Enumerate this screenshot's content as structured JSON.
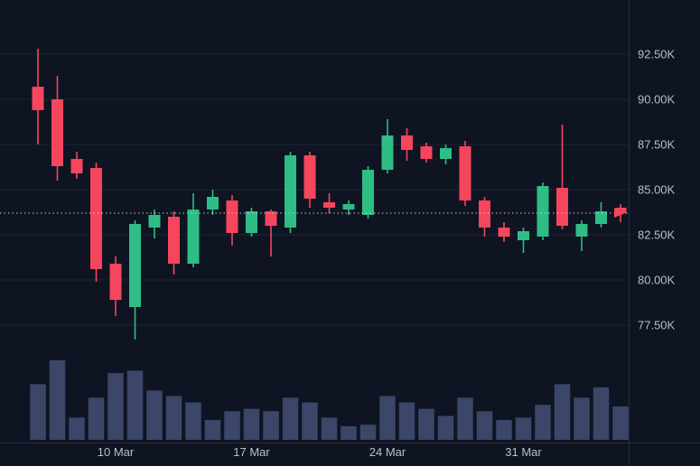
{
  "chart_data": {
    "type": "candlestick",
    "title": "",
    "unit": "K",
    "ylim": [
      76,
      94.5
    ],
    "grid": "horizontal",
    "legend_position": "none",
    "y_axis": {
      "side": "right",
      "ticks": [
        {
          "value": 92.5,
          "label": "92.50K"
        },
        {
          "value": 90.0,
          "label": "90.00K"
        },
        {
          "value": 87.5,
          "label": "87.50K"
        },
        {
          "value": 85.0,
          "label": "85.00K"
        },
        {
          "value": 82.5,
          "label": "82.50K"
        },
        {
          "value": 80.0,
          "label": "80.00K"
        },
        {
          "value": 77.5,
          "label": "77.50K"
        }
      ]
    },
    "x_axis": {
      "ticks": [
        {
          "index": 4,
          "label": "10 Mar"
        },
        {
          "index": 11,
          "label": "17 Mar"
        },
        {
          "index": 18,
          "label": "24 Mar"
        },
        {
          "index": 25,
          "label": "31 Mar"
        }
      ]
    },
    "current_price": {
      "value": 83.7
    },
    "candles": [
      {
        "o": 90.7,
        "h": 92.8,
        "l": 87.5,
        "c": 89.4,
        "v": 0.7
      },
      {
        "o": 90.0,
        "h": 91.3,
        "l": 85.5,
        "c": 86.3,
        "v": 1.0
      },
      {
        "o": 86.7,
        "h": 87.1,
        "l": 85.6,
        "c": 85.9,
        "v": 0.28
      },
      {
        "o": 86.2,
        "h": 86.5,
        "l": 79.9,
        "c": 80.6,
        "v": 0.53
      },
      {
        "o": 80.9,
        "h": 81.3,
        "l": 78.0,
        "c": 78.9,
        "v": 0.84
      },
      {
        "o": 78.5,
        "h": 83.3,
        "l": 76.7,
        "c": 83.1,
        "v": 0.87
      },
      {
        "o": 82.9,
        "h": 83.9,
        "l": 82.3,
        "c": 83.6,
        "v": 0.62
      },
      {
        "o": 83.5,
        "h": 83.8,
        "l": 80.3,
        "c": 80.9,
        "v": 0.55
      },
      {
        "o": 80.9,
        "h": 84.8,
        "l": 80.7,
        "c": 83.9,
        "v": 0.47
      },
      {
        "o": 83.9,
        "h": 85.0,
        "l": 83.6,
        "c": 84.6,
        "v": 0.25
      },
      {
        "o": 84.4,
        "h": 84.7,
        "l": 81.9,
        "c": 82.6,
        "v": 0.36
      },
      {
        "o": 82.6,
        "h": 84.0,
        "l": 82.4,
        "c": 83.8,
        "v": 0.39
      },
      {
        "o": 83.8,
        "h": 83.9,
        "l": 81.3,
        "c": 83.0,
        "v": 0.36
      },
      {
        "o": 82.9,
        "h": 87.1,
        "l": 82.6,
        "c": 86.9,
        "v": 0.53
      },
      {
        "o": 86.9,
        "h": 87.1,
        "l": 84.0,
        "c": 84.5,
        "v": 0.47
      },
      {
        "o": 84.3,
        "h": 84.8,
        "l": 83.7,
        "c": 84.0,
        "v": 0.28
      },
      {
        "o": 83.9,
        "h": 84.4,
        "l": 83.6,
        "c": 84.2,
        "v": 0.17
      },
      {
        "o": 83.6,
        "h": 86.3,
        "l": 83.4,
        "c": 86.1,
        "v": 0.19
      },
      {
        "o": 86.1,
        "h": 88.9,
        "l": 85.9,
        "c": 88.0,
        "v": 0.55
      },
      {
        "o": 88.0,
        "h": 88.4,
        "l": 86.6,
        "c": 87.2,
        "v": 0.47
      },
      {
        "o": 87.4,
        "h": 87.6,
        "l": 86.5,
        "c": 86.7,
        "v": 0.39
      },
      {
        "o": 86.7,
        "h": 87.5,
        "l": 86.4,
        "c": 87.3,
        "v": 0.3
      },
      {
        "o": 87.4,
        "h": 87.7,
        "l": 84.1,
        "c": 84.4,
        "v": 0.53
      },
      {
        "o": 84.4,
        "h": 84.6,
        "l": 82.4,
        "c": 82.9,
        "v": 0.36
      },
      {
        "o": 82.9,
        "h": 83.2,
        "l": 82.1,
        "c": 82.4,
        "v": 0.25
      },
      {
        "o": 82.2,
        "h": 82.9,
        "l": 81.5,
        "c": 82.7,
        "v": 0.28
      },
      {
        "o": 82.4,
        "h": 85.4,
        "l": 82.2,
        "c": 85.2,
        "v": 0.44
      },
      {
        "o": 85.1,
        "h": 88.6,
        "l": 82.8,
        "c": 83.0,
        "v": 0.7
      },
      {
        "o": 82.4,
        "h": 83.3,
        "l": 81.6,
        "c": 83.1,
        "v": 0.53
      },
      {
        "o": 83.1,
        "h": 84.3,
        "l": 82.9,
        "c": 83.8,
        "v": 0.66
      },
      {
        "o": 84.0,
        "h": 84.2,
        "l": 83.2,
        "c": 83.7,
        "v": 0.42
      }
    ],
    "colors": {
      "background": "#0e1422",
      "grid": "#1c2433",
      "axis_line": "#262e40",
      "axis_text": "#b9bfca",
      "up": "#2ebd85",
      "down": "#f6465d",
      "volume": "#3b4668",
      "price_line": "#c8cdd8",
      "price_marker": "#f6465d"
    }
  }
}
